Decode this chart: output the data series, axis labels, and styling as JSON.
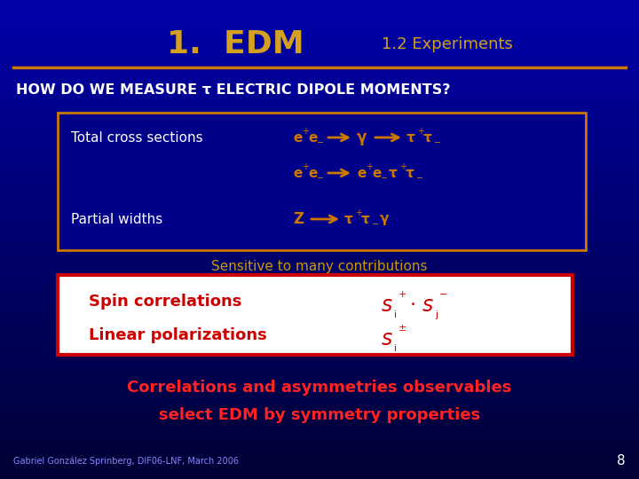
{
  "bg_top_color": "#000044",
  "bg_bottom_color": "#0000bb",
  "title_text": "1.  EDM",
  "subtitle_text": "1.2 Experiments",
  "title_color": "#d4a020",
  "subtitle_color": "#d4a020",
  "divider_color": "#cc7700",
  "header_question": "HOW DO WE MEASURE τ ELECTRIC DIPOLE MOMENTS?",
  "header_color": "#ffffff",
  "box1_border": "#cc7700",
  "box1_bg": "#000088",
  "box2_bg": "#ffffff",
  "box2_border": "#cc0000",
  "orange": "#cc7700",
  "white": "#ffffff",
  "red": "#cc0000",
  "sensitive_color": "#cc9900",
  "sensitive_text": "Sensitive to many contributions",
  "corr_text1": "Correlations and asymmetries observables",
  "corr_text2": "select EDM by symmetry properties",
  "corr_color": "#ff2222",
  "footer_text": "Gabriel González Sprinberg, DIF06-LNF, March 2006",
  "footer_color": "#8888ff",
  "page_num": "8"
}
